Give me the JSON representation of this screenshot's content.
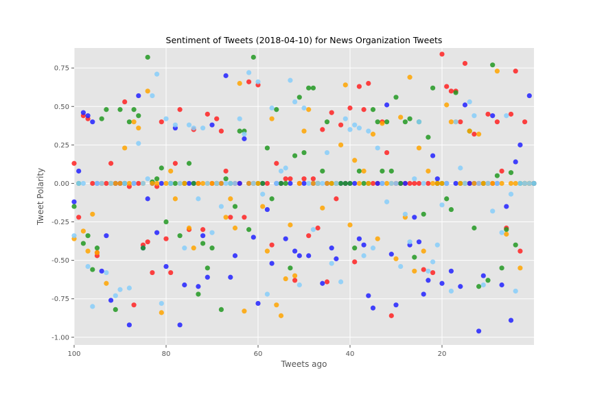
{
  "chart_data": {
    "type": "scatter",
    "title": "Sentiment of Tweets (2018-04-10) for News Organization Tweets",
    "xlabel": "Tweets ago",
    "ylabel": "Tweet Polarity",
    "xlim": [
      100,
      0
    ],
    "ylim": [
      -1.05,
      0.88
    ],
    "xticks": [
      100,
      80,
      60,
      40,
      20
    ],
    "yticks": [
      -1.0,
      -0.75,
      -0.5,
      -0.25,
      0.0,
      0.25,
      0.5,
      0.75
    ],
    "grid": true,
    "background": "#e5e5e5",
    "grid_color": "#ffffff",
    "colors": {
      "red": "#ff2222",
      "blue": "#2222ff",
      "green": "#229922",
      "gold": "#ffa500",
      "lightblue": "#87cefa"
    },
    "series": [
      {
        "color_key": "red",
        "x": [
          100,
          99,
          98,
          97,
          96,
          95,
          95,
          94,
          93,
          92,
          91,
          90,
          89,
          88,
          87,
          86,
          85,
          84,
          83,
          82,
          81,
          80,
          79,
          78,
          77,
          76,
          75,
          74,
          73,
          72,
          71,
          70,
          69,
          68,
          67,
          66,
          65,
          64,
          63,
          62,
          61,
          60,
          59,
          58,
          57,
          56,
          55,
          54,
          53,
          52,
          51,
          50,
          49,
          48,
          47,
          46,
          45,
          44,
          43,
          42,
          41,
          40,
          39,
          38,
          37,
          36,
          35,
          34,
          33,
          32,
          31,
          30,
          29,
          28,
          27,
          26,
          25,
          24,
          23,
          22,
          21,
          20,
          19,
          18,
          17,
          16,
          15,
          14,
          13,
          12,
          11,
          10,
          9,
          8,
          7,
          6,
          5,
          4,
          3,
          2,
          1,
          0
        ],
        "y": [
          0.13,
          -0.22,
          0.44,
          0.42,
          0,
          -0.47,
          -0.45,
          0,
          0,
          0.13,
          0,
          0,
          0.53,
          -0.02,
          -0.79,
          0,
          -0.4,
          -0.38,
          -0.58,
          -0.02,
          0.4,
          -0.36,
          -0.58,
          0.13,
          0.48,
          0,
          -0.3,
          0.35,
          0,
          -0.3,
          0.45,
          0,
          0.42,
          0.34,
          0.08,
          -0.22,
          0,
          0,
          -0.22,
          0.66,
          0,
          0.64,
          0,
          0,
          -0.4,
          0.13,
          0,
          0.03,
          0.03,
          -0.63,
          0,
          0.03,
          -0.34,
          0.03,
          -0.29,
          0.35,
          -0.64,
          0.46,
          -0.1,
          0.38,
          0,
          0.49,
          -0.51,
          0.63,
          0.48,
          0.65,
          0,
          0,
          0.4,
          0.2,
          -0.86,
          0,
          0,
          0,
          0,
          0,
          0,
          -0.56,
          0,
          -0.58,
          0,
          0.84,
          0.63,
          0.6,
          0.6,
          0.4,
          0.78,
          0,
          0.32,
          0,
          0,
          0.45,
          0,
          0.4,
          0.08,
          -0.29,
          0.45,
          0.73,
          -0.44,
          0.4,
          0,
          0
        ],
        "name": ""
      },
      {
        "color_key": "blue",
        "x": [
          100,
          99,
          98,
          97,
          96,
          95,
          94,
          93,
          92,
          91,
          90,
          89,
          88,
          87,
          86,
          85,
          84,
          83,
          82,
          81,
          80,
          79,
          78,
          77,
          76,
          75,
          74,
          73,
          72,
          71,
          70,
          69,
          68,
          67,
          66,
          65,
          64,
          63,
          62,
          61,
          60,
          59,
          58,
          57,
          56,
          55,
          54,
          53,
          52,
          51,
          50,
          49,
          48,
          47,
          46,
          45,
          44,
          43,
          42,
          41,
          40,
          39,
          38,
          37,
          36,
          35,
          34,
          33,
          32,
          31,
          30,
          29,
          28,
          27,
          26,
          25,
          24,
          23,
          22,
          21,
          20,
          19,
          18,
          17,
          16,
          15,
          14,
          13,
          12,
          11,
          10,
          9,
          8,
          7,
          6,
          5,
          4,
          3,
          2,
          1,
          0
        ],
        "y": [
          -0.12,
          0.08,
          0.46,
          0.44,
          0.4,
          0,
          -0.57,
          -0.34,
          -0.76,
          0,
          0,
          0,
          -0.92,
          0,
          0.57,
          -0.42,
          -0.1,
          0,
          -0.32,
          0,
          -0.54,
          0,
          0.36,
          -0.92,
          -0.66,
          0,
          0,
          -0.67,
          -0.34,
          -0.61,
          0.38,
          0,
          0,
          0.7,
          -0.61,
          -0.47,
          0,
          0.29,
          0,
          -0.35,
          -0.78,
          0,
          -0.17,
          -0.52,
          0,
          0,
          -0.36,
          0,
          -0.44,
          -0.47,
          0,
          -0.47,
          0,
          0,
          -0.65,
          0,
          -0.42,
          -0.49,
          0,
          0,
          0,
          0,
          -0.36,
          -0.4,
          -0.73,
          -0.81,
          0,
          0,
          0.51,
          -0.46,
          -0.79,
          0,
          0,
          -0.4,
          -0.22,
          -0.38,
          -0.72,
          -0.63,
          0.18,
          0.03,
          -0.65,
          0,
          -0.57,
          0,
          -0.67,
          0.51,
          0,
          0,
          -0.96,
          -0.6,
          0,
          0.44,
          0,
          -0.66,
          -0.15,
          -0.89,
          0.14,
          0.25,
          0,
          0.57,
          0
        ],
        "name": ""
      },
      {
        "color_key": "green",
        "x": [
          100,
          99,
          98,
          97,
          96,
          95,
          94,
          93,
          92,
          91,
          90,
          89,
          88,
          87,
          86,
          85,
          84,
          83,
          82,
          81,
          80,
          79,
          78,
          77,
          76,
          75,
          74,
          73,
          72,
          71,
          70,
          69,
          68,
          67,
          66,
          65,
          64,
          63,
          62,
          61,
          60,
          59,
          58,
          57,
          56,
          55,
          54,
          53,
          52,
          51,
          50,
          49,
          48,
          47,
          46,
          45,
          44,
          43,
          42,
          41,
          40,
          39,
          38,
          37,
          36,
          35,
          34,
          33,
          32,
          31,
          30,
          29,
          28,
          27,
          26,
          25,
          24,
          23,
          22,
          21,
          20,
          19,
          18,
          17,
          16,
          15,
          14,
          13,
          12,
          11,
          10,
          9,
          8,
          7,
          6,
          5,
          4,
          3,
          2,
          1,
          0
        ],
        "y": [
          -0.15,
          0,
          -0.39,
          -0.34,
          -0.56,
          -0.42,
          0.42,
          0.48,
          0,
          -0.82,
          0.48,
          0,
          0.4,
          0.48,
          0.44,
          -0.42,
          0.82,
          0.01,
          0.03,
          0.1,
          -0.25,
          0,
          0,
          -0.34,
          0,
          0.13,
          0,
          -0.72,
          -0.39,
          -0.55,
          -0.42,
          0,
          -0.82,
          0.03,
          0,
          -0.15,
          0.34,
          0.34,
          -0.3,
          0.82,
          0,
          0,
          0.23,
          -0.1,
          0.48,
          0,
          0,
          -0.55,
          0.18,
          0.56,
          0.2,
          0.62,
          0.62,
          0,
          0.08,
          0.4,
          0,
          0,
          0,
          0,
          0,
          -0.42,
          0.08,
          0,
          0,
          0.48,
          0.4,
          0.08,
          0.4,
          0.08,
          0.56,
          0,
          0.4,
          0.42,
          -0.48,
          0.4,
          -0.2,
          0.3,
          0.62,
          0,
          0,
          -0.1,
          -0.17,
          0.59,
          0,
          0,
          0.34,
          -0.29,
          -0.67,
          0,
          -0.63,
          0.77,
          0.05,
          -0.55,
          -0.3,
          0.07,
          -0.4,
          0,
          0,
          0,
          0
        ],
        "name": ""
      },
      {
        "color_key": "gold",
        "x": [
          100,
          98,
          97,
          96,
          95,
          94,
          93,
          92,
          91,
          90,
          89,
          88,
          87,
          86,
          85,
          84,
          83,
          82,
          81,
          80,
          79,
          78,
          77,
          76,
          75,
          74,
          73,
          72,
          71,
          70,
          69,
          68,
          67,
          66,
          65,
          64,
          63,
          62,
          61,
          60,
          59,
          58,
          57,
          56,
          55,
          54,
          53,
          52,
          51,
          50,
          49,
          48,
          47,
          46,
          45,
          44,
          43,
          42,
          41,
          40,
          39,
          38,
          37,
          36,
          35,
          34,
          33,
          32,
          31,
          30,
          29,
          28,
          27,
          26,
          25,
          24,
          23,
          22,
          21,
          20,
          19,
          18,
          17,
          16,
          15,
          14,
          13,
          12,
          11,
          10,
          9,
          8,
          7,
          6,
          5,
          4,
          3,
          2,
          1
        ],
        "y": [
          -0.36,
          -0.31,
          -0.44,
          -0.2,
          -0.45,
          0,
          -0.65,
          0,
          0,
          0,
          0.23,
          0,
          0.4,
          0.36,
          0,
          0.6,
          0,
          0,
          -0.84,
          0,
          0.08,
          -0.1,
          0,
          0,
          -0.29,
          -0.42,
          0,
          0,
          0,
          0,
          0,
          0,
          -0.22,
          -0.1,
          -0.29,
          0.65,
          -0.83,
          0,
          0,
          0,
          -0.15,
          -0.44,
          0.42,
          -0.79,
          -0.86,
          -0.62,
          -0.27,
          -0.6,
          0,
          0.34,
          0.48,
          0,
          0,
          -0.16,
          0,
          0,
          0,
          0.25,
          0.64,
          -0.27,
          0.15,
          0,
          0.08,
          0,
          0.32,
          -0.36,
          0.39,
          0,
          0,
          -0.49,
          0.43,
          -0.22,
          0.69,
          -0.57,
          0.23,
          -0.44,
          0.08,
          0,
          0,
          0,
          0.51,
          0.4,
          0.4,
          0,
          0,
          0.34,
          0,
          0.32,
          0,
          0,
          0,
          0.73,
          0,
          -0.33,
          0,
          0,
          -0.55,
          0,
          0
        ],
        "name": ""
      },
      {
        "color_key": "lightblue",
        "x": [
          100,
          99,
          98,
          97,
          96,
          95,
          94,
          93,
          92,
          91,
          90,
          89,
          88,
          87,
          86,
          85,
          84,
          83,
          82,
          81,
          80,
          79,
          78,
          77,
          76,
          75,
          74,
          73,
          72,
          71,
          70,
          69,
          68,
          67,
          66,
          65,
          64,
          63,
          62,
          61,
          60,
          59,
          58,
          57,
          56,
          55,
          54,
          53,
          52,
          51,
          50,
          49,
          48,
          47,
          46,
          45,
          44,
          43,
          42,
          41,
          40,
          39,
          38,
          37,
          36,
          35,
          34,
          33,
          32,
          31,
          30,
          29,
          28,
          27,
          26,
          25,
          24,
          23,
          22,
          21,
          20,
          19,
          18,
          17,
          16,
          15,
          14,
          13,
          12,
          11,
          10,
          9,
          8,
          7,
          6,
          5,
          4,
          3,
          2,
          1,
          0
        ],
        "y": [
          -0.34,
          0,
          0,
          -0.54,
          -0.8,
          0,
          0,
          -0.58,
          0,
          -0.73,
          -0.69,
          0,
          -0.68,
          0,
          0.26,
          0,
          0.03,
          0.57,
          0.71,
          -0.78,
          0.42,
          0,
          0.38,
          0,
          -0.42,
          0.38,
          0.36,
          -0.1,
          0.36,
          0,
          -0.32,
          0,
          -0.15,
          0,
          0,
          0,
          0.42,
          0.32,
          0.72,
          0,
          0.66,
          -0.07,
          -0.72,
          0.49,
          0,
          0.08,
          0.1,
          0.67,
          0.53,
          -0.66,
          0.49,
          0,
          -0.3,
          0,
          0,
          0.2,
          -0.52,
          0,
          -0.64,
          0.42,
          0.35,
          0.38,
          0.36,
          -0.47,
          0.34,
          -0.42,
          0.23,
          0,
          -0.12,
          0,
          0,
          -0.54,
          -0.2,
          -0.38,
          0.03,
          0.4,
          0,
          -0.57,
          -0.51,
          -0.4,
          -0.14,
          0,
          -0.7,
          0.4,
          0.1,
          0,
          0.53,
          0.44,
          0,
          -0.66,
          0,
          -0.18,
          0,
          -0.32,
          0.44,
          -0.07,
          -0.7,
          0,
          0,
          0,
          0
        ],
        "name": ""
      }
    ]
  }
}
